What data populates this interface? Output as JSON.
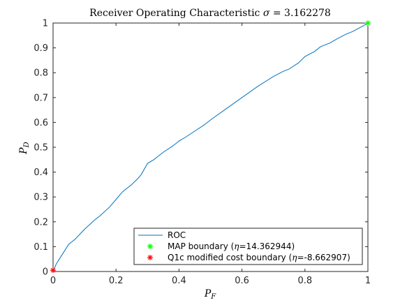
{
  "chart_data": {
    "type": "line",
    "title_prefix": "Receiver Operating Characteristic ",
    "title_sigma": "σ",
    "title_suffix": " = 3.162278",
    "xlabel_main": "P",
    "xlabel_sub": "F",
    "ylabel_main": "P",
    "ylabel_sub": "D",
    "xlim": [
      0,
      1
    ],
    "ylim": [
      0,
      1
    ],
    "xticks": [
      "0",
      "0.2",
      "0.4",
      "0.6",
      "0.8",
      "1"
    ],
    "yticks": [
      "0",
      "0.1",
      "0.2",
      "0.3",
      "0.4",
      "0.5",
      "0.6",
      "0.7",
      "0.8",
      "0.9",
      "1"
    ],
    "grid": false,
    "legend_position": "bottom-right",
    "colors": {
      "roc": "#0072BD",
      "map": "#00FF00",
      "q1c": "#FF0000",
      "axes": "#262626"
    },
    "series": [
      {
        "name": "ROC",
        "x": [
          0,
          0.005,
          0.01,
          0.02,
          0.03,
          0.05,
          0.07,
          0.1,
          0.13,
          0.15,
          0.18,
          0.2,
          0.22,
          0.25,
          0.27,
          0.28,
          0.3,
          0.32,
          0.33,
          0.35,
          0.38,
          0.4,
          0.42,
          0.45,
          0.48,
          0.5,
          0.55,
          0.6,
          0.65,
          0.7,
          0.73,
          0.75,
          0.78,
          0.8,
          0.83,
          0.85,
          0.88,
          0.9,
          0.93,
          0.95,
          0.98,
          1.0
        ],
        "y": [
          0,
          0.015,
          0.03,
          0.05,
          0.07,
          0.11,
          0.13,
          0.17,
          0.205,
          0.225,
          0.26,
          0.29,
          0.32,
          0.35,
          0.375,
          0.39,
          0.435,
          0.45,
          0.46,
          0.48,
          0.505,
          0.525,
          0.54,
          0.565,
          0.59,
          0.61,
          0.655,
          0.7,
          0.745,
          0.785,
          0.805,
          0.815,
          0.84,
          0.865,
          0.885,
          0.905,
          0.92,
          0.935,
          0.955,
          0.965,
          0.985,
          1.0
        ]
      },
      {
        "name": "MAP boundary (",
        "name_eta": "η",
        "name_value": "=14.362944)",
        "x": [
          1.0
        ],
        "y": [
          1.0
        ],
        "marker": "asterisk"
      },
      {
        "name": "Q1c modified cost boundary (",
        "name_eta": "η",
        "name_value": "=-8.662907)",
        "x": [
          0.0
        ],
        "y": [
          0.005
        ],
        "marker": "asterisk"
      }
    ]
  }
}
